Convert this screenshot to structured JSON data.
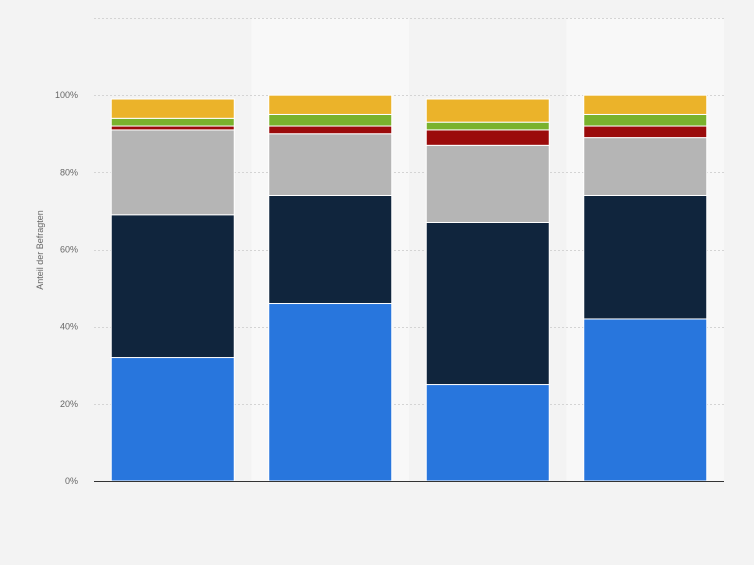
{
  "chart_data": {
    "type": "bar",
    "stacked": true,
    "categories": [
      "",
      "",
      "",
      ""
    ],
    "ylabel": "Anteil der Befragten",
    "ylim": [
      0,
      120
    ],
    "yticks": [
      0,
      20,
      40,
      60,
      80,
      100
    ],
    "ytick_labels": [
      "0%",
      "20%",
      "40%",
      "60%",
      "80%",
      "100%"
    ],
    "grid": true,
    "series": [
      {
        "color": "#2876dd",
        "values": [
          32,
          46,
          25,
          42
        ]
      },
      {
        "color": "#10253d",
        "values": [
          37,
          28,
          42,
          32
        ]
      },
      {
        "color": "#b5b5b5",
        "values": [
          22,
          16,
          20,
          15
        ]
      },
      {
        "color": "#9b0b0b",
        "values": [
          1,
          2,
          4,
          3
        ]
      },
      {
        "color": "#7ab22d",
        "values": [
          2,
          3,
          2,
          3
        ]
      },
      {
        "color": "#ebb32a",
        "values": [
          5,
          5,
          6,
          5
        ]
      }
    ]
  },
  "colors": {
    "background": "#f3f3f3",
    "alt_band": "#f8f8f8",
    "grid": "#d4d4d4",
    "axis": "#333333",
    "text": "#666666"
  }
}
